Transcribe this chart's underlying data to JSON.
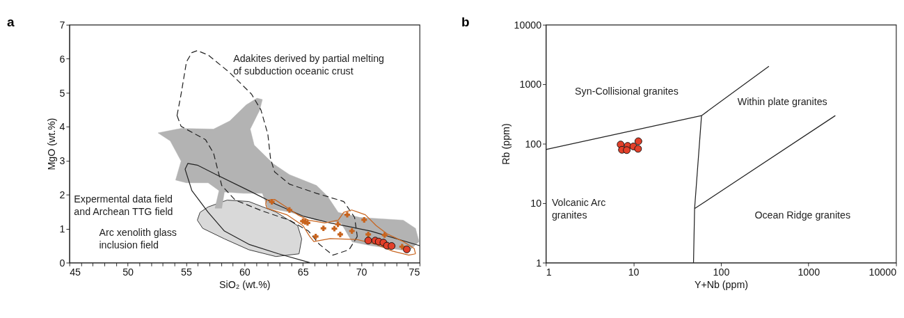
{
  "chart_data": [
    {
      "type": "scatter",
      "title": "a",
      "xlabel": "SiO₂ (wt.%)",
      "ylabel": "MgO (wt.%)",
      "xlim": [
        45,
        75
      ],
      "ylim": [
        0,
        7
      ],
      "xticks": [
        45,
        {
          "value": 46,
          "label": null
        },
        {
          "value": 47,
          "label": null
        },
        {
          "value": 48,
          "label": null
        },
        {
          "value": 49,
          "label": null
        },
        50,
        {
          "value": 51,
          "label": null
        },
        {
          "value": 52,
          "label": null
        },
        {
          "value": 53,
          "label": null
        },
        {
          "value": 54,
          "label": null
        },
        55,
        {
          "value": 56,
          "label": null
        },
        {
          "value": 57,
          "label": null
        },
        {
          "value": 58,
          "label": null
        },
        {
          "value": 59,
          "label": null
        },
        60,
        {
          "value": 61,
          "label": null
        },
        {
          "value": 62,
          "label": null
        },
        {
          "value": 63,
          "label": null
        },
        {
          "value": 64,
          "label": null
        },
        65,
        {
          "value": 66,
          "label": null
        },
        {
          "value": 67,
          "label": null
        },
        {
          "value": 68,
          "label": null
        },
        {
          "value": 69,
          "label": null
        },
        70,
        {
          "value": 71,
          "label": null
        },
        {
          "value": 72,
          "label": null
        },
        {
          "value": 73,
          "label": null
        },
        {
          "value": 74,
          "label": null
        },
        75
      ],
      "yticks": [
        0,
        1,
        2,
        3,
        4,
        5,
        6,
        7
      ],
      "grid": false,
      "series": [
        {
          "type": "area",
          "color": "#d9d9d9",
          "x": [
            56.89,
            58.51,
            60.37,
            62.69,
            64.55,
            64.9,
            64.67,
            62.69,
            60.37,
            58.28,
            56.42,
            55.96,
            56.19,
            56.89
          ],
          "values": [
            1.64,
            1.84,
            1.8,
            1.49,
            1.09,
            0.7,
            0.26,
            0.18,
            0.38,
            0.7,
            1.01,
            1.25,
            1.48,
            1.64
          ]
        },
        {
          "type": "area",
          "color": "#b3b3b3",
          "x": [
            52.59,
            54.57,
            57.35,
            58.74,
            60.14,
            61.07,
            61.53,
            61.3,
            60.49,
            60.83,
            62.46,
            63.85,
            66.17,
            67.1,
            68.03,
            69.89,
            71.75,
            73.6,
            74.65,
            74.95,
            74.07,
            70.82,
            69.22,
            68.26,
            66.17,
            63.85,
            62.0,
            61.53,
            59.91,
            58.28,
            58.05,
            57.47,
            57.82,
            56.89,
            55.03,
            54.1,
            54.57,
            53.64,
            52.59
          ],
          "values": [
            3.82,
            3.95,
            3.93,
            4.17,
            4.64,
            4.84,
            4.8,
            4.49,
            3.93,
            3.46,
            2.91,
            2.59,
            2.27,
            1.96,
            1.48,
            1.33,
            1.29,
            1.25,
            1.01,
            0.62,
            0.34,
            0.5,
            0.61,
            1.17,
            1.25,
            1.49,
            1.6,
            2.04,
            2.04,
            2.08,
            1.6,
            1.6,
            2.12,
            2.35,
            2.35,
            2.43,
            2.99,
            3.58,
            3.82
          ]
        },
        {
          "type": "line",
          "color": "#222222",
          "line_style": "dashed",
          "marker": "none",
          "x": [
            54.22,
            54.57,
            55.03,
            55.49,
            55.96,
            56.89,
            58.74,
            60.6,
            61.41,
            62.0,
            62.23,
            62.58,
            63.85,
            66.17,
            68.5,
            69.43,
            69.66
          ],
          "values": [
            4.33,
            4.96,
            5.91,
            6.18,
            6.24,
            6.11,
            5.59,
            4.96,
            4.49,
            3.78,
            3.06,
            2.67,
            2.31,
            2.04,
            1.8,
            1.33,
            0.77
          ]
        },
        {
          "type": "line",
          "color": "#222222",
          "line_style": "dashed",
          "marker": "none",
          "x": [
            54.22,
            54.57,
            56.66,
            57.35,
            58.05,
            59.21,
            61.53,
            63.85,
            65.48,
            66.41,
            67.57,
            68.96,
            69.66
          ],
          "values": [
            4.33,
            4.01,
            3.62,
            3.22,
            2.27,
            1.84,
            1.52,
            1.25,
            0.93,
            0.54,
            0.22,
            0.38,
            0.77
          ]
        },
        {
          "type": "line",
          "color": "#222222",
          "line_style": "solid",
          "marker": "none",
          "x": [
            54.91,
            55.49,
            56.89,
            58.28,
            60.37,
            62.92,
            65.59
          ],
          "values": [
            2.75,
            2.12,
            1.48,
            0.93,
            0.54,
            0.26,
            0
          ]
        },
        {
          "type": "line",
          "color": "#222222",
          "line_style": "solid",
          "marker": "none",
          "x": [
            54.91,
            55.15,
            55.96,
            57.58,
            60.37,
            62.69,
            65.01,
            67.34,
            70.82,
            75.0
          ],
          "values": [
            2.75,
            2.92,
            2.87,
            2.59,
            2.12,
            1.72,
            1.37,
            1.17,
            0.93,
            0.5
          ]
        },
        {
          "type": "line",
          "color": "#c8641e",
          "line_style": "solid",
          "marker": "none",
          "x": [
            61.81,
            61.88,
            62.58,
            63.39,
            64.55,
            65.48,
            66.87,
            68.03,
            68.5,
            69.19,
            70.35,
            71.28,
            72.21,
            73.6,
            74.53,
            74.65
          ],
          "values": [
            1.72,
            1.84,
            1.86,
            1.68,
            1.41,
            1.25,
            1.17,
            1.25,
            1.48,
            1.55,
            1.41,
            1.09,
            0.85,
            0.62,
            0.42,
            0.26
          ]
        },
        {
          "type": "line",
          "color": "#c8641e",
          "line_style": "solid",
          "marker": "none",
          "x": [
            61.81,
            61.93,
            63.62,
            65.01,
            65.59,
            65.94,
            67.34,
            69.66,
            71.28,
            72.68,
            74.07,
            74.65
          ],
          "values": [
            1.72,
            1.6,
            1.41,
            1.09,
            0.77,
            0.62,
            0.71,
            0.68,
            0.54,
            0.34,
            0.22,
            0.26
          ]
        },
        {
          "color": "#c8641e",
          "marker": "cross",
          "x": [
            62.34,
            63.85,
            65.0,
            65.2,
            65.4,
            66.1,
            66.76,
            67.7,
            68.0,
            68.2,
            68.8,
            69.2,
            70.25,
            70.6,
            72.0,
            73.5
          ],
          "values": [
            1.79,
            1.55,
            1.22,
            1.2,
            1.17,
            0.77,
            1.01,
            1.0,
            1.13,
            0.83,
            1.41,
            0.93,
            1.26,
            0.83,
            0.81,
            0.47
          ]
        },
        {
          "color": "#e3402a",
          "marker": "circle",
          "x": [
            70.6,
            71.2,
            71.5,
            71.9,
            72.2,
            72.6,
            73.9
          ],
          "values": [
            0.65,
            0.65,
            0.62,
            0.59,
            0.5,
            0.49,
            0.39
          ]
        }
      ],
      "annotations": [
        "Adakites derived by partial melting\nof subduction oceanic crust",
        "Expermental data field\nand Archean TTG field",
        "Arc xenolith glass\ninclusion field"
      ]
    },
    {
      "type": "scatter",
      "title": "b",
      "xlabel": "Y+Nb (ppm)",
      "ylabel": "Rb (ppm)",
      "log": "xy",
      "xlim": [
        1,
        10000
      ],
      "ylim": [
        1,
        10000
      ],
      "xticks": [
        1,
        10,
        100,
        1000,
        10000
      ],
      "yticks": [
        1,
        10,
        100,
        1000,
        10000
      ],
      "grid": false,
      "series": [
        {
          "type": "line",
          "color": "#222222",
          "line_style": "solid",
          "marker": "none",
          "x": [
            1,
            60,
            353,
            null,
            60,
            50,
            48.6,
            null,
            50,
            2025
          ],
          "values": [
            80,
            297,
            2000,
            null,
            297,
            8.1,
            1,
            null,
            8.1,
            297
          ]
        },
        {
          "color": "#e3402a",
          "marker": "circle",
          "x": [
            7.15,
            7.4,
            8.6,
            8.4,
            10,
            11.4,
            11.3
          ],
          "values": [
            97,
            79,
            92,
            78,
            90,
            110,
            82
          ]
        }
      ],
      "annotations": [
        "Syn-Collisional granites",
        "Within plate granites",
        "Volcanic Arc\ngranites",
        "Ocean Ridge granites"
      ]
    }
  ]
}
